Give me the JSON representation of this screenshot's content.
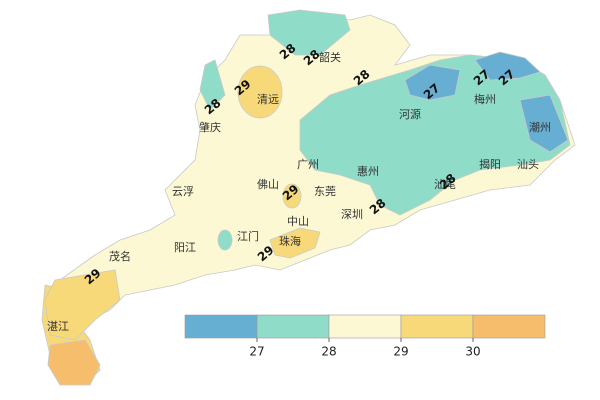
{
  "map": {
    "cities": [
      "韶关",
      "清远",
      "肇庆",
      "广州",
      "河源",
      "梅州",
      "潮州",
      "揭阳",
      "汕头",
      "惠州",
      "汕尾",
      "佛山",
      "东莞",
      "云浮",
      "中山",
      "深圳",
      "江门",
      "珠海",
      "阳江",
      "茂名",
      "湛江"
    ],
    "contour_labels": [
      28,
      28,
      28,
      29,
      28,
      27,
      27,
      27,
      28,
      28,
      29,
      29,
      29
    ],
    "legend": {
      "colors": [
        "#67aed3",
        "#8fdcc9",
        "#fbf8d3",
        "#f8d97a",
        "#f6bd6d"
      ],
      "ticks": [
        27,
        28,
        29,
        30
      ]
    }
  }
}
